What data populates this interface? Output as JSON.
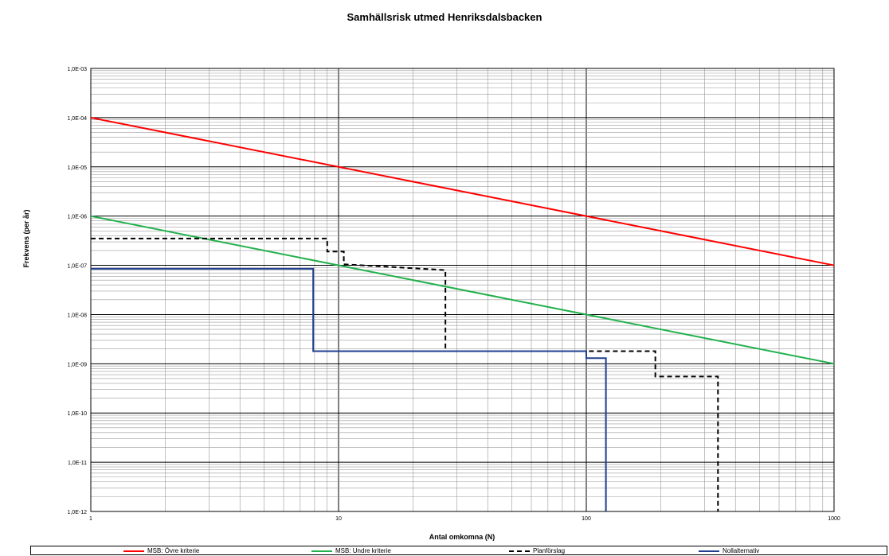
{
  "chart_data": {
    "type": "line",
    "title": "Samhällsrisk utmed Henriksdalsbacken",
    "xlabel": "Antal omkomna (N)",
    "ylabel": "Frekvens (per år)",
    "xscale": "log",
    "yscale": "log",
    "xlim": [
      1,
      1000
    ],
    "ylim": [
      1e-12,
      0.001
    ],
    "grid": true,
    "legend_position": "bottom",
    "x_tick_labels": [
      "1",
      "10",
      "100",
      "1000"
    ],
    "y_tick_labels": [
      "1,0E-03",
      "1,0E-04",
      "1,0E-05",
      "1,0E-06",
      "1,0E-07",
      "1,0E-08",
      "1,0E-09",
      "1,0E-10",
      "1,0E-11",
      "1,0E-12"
    ],
    "series": [
      {
        "name": "MSB: Övre kriterie",
        "color": "#ff0000",
        "style": "solid",
        "x": [
          1,
          1000
        ],
        "y": [
          0.0001,
          1e-07
        ]
      },
      {
        "name": "MSB: Undre kriterie",
        "color": "#22b14c",
        "style": "solid",
        "x": [
          1,
          1000
        ],
        "y": [
          1e-06,
          1e-09
        ]
      },
      {
        "name": "Planförslag",
        "color": "#000000",
        "style": "dashed",
        "x": [
          1,
          9,
          9,
          10.5,
          10.5,
          27,
          27,
          100,
          100,
          190,
          190,
          340,
          340
        ],
        "y": [
          3.5e-07,
          3.5e-07,
          1.9e-07,
          1.9e-07,
          1.05e-07,
          8e-08,
          1.8e-09,
          1.8e-09,
          1.8e-09,
          1.8e-09,
          5.5e-10,
          5.5e-10,
          1e-12
        ]
      },
      {
        "name": "Nollalternativ",
        "color": "#1f3f8f",
        "style": "solid",
        "x": [
          1,
          7.9,
          7.9,
          100,
          100,
          120,
          120
        ],
        "y": [
          8.5e-08,
          8.5e-08,
          1.8e-09,
          1.8e-09,
          1.3e-09,
          1.3e-09,
          1e-12
        ]
      }
    ]
  }
}
